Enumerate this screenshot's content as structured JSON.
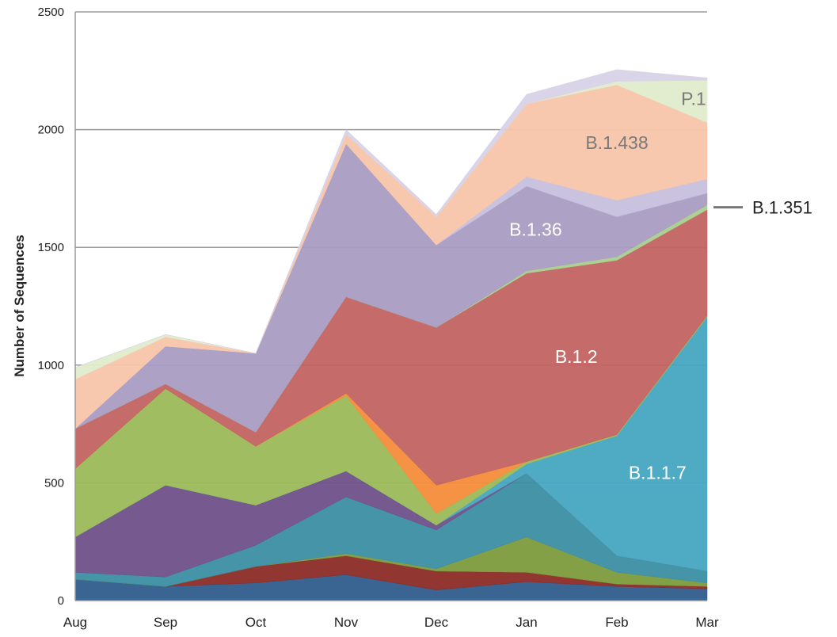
{
  "chart_data": {
    "type": "stacked-area",
    "y_label": "Number of Sequences",
    "categories": [
      "Aug",
      "Sep",
      "Oct",
      "Nov",
      "Dec",
      "Jan",
      "Feb",
      "Mar"
    ],
    "ylim": [
      0,
      2500
    ],
    "yticks": [
      0,
      500,
      1000,
      1500,
      2000,
      2500
    ],
    "grid": true,
    "series": [
      {
        "color": "#2f5d8c",
        "values": [
          90,
          60,
          75,
          110,
          45,
          80,
          60,
          50
        ]
      },
      {
        "color": "#8c2b27",
        "values": [
          0,
          0,
          70,
          80,
          80,
          40,
          10,
          10
        ]
      },
      {
        "color": "#7c9b3d",
        "values": [
          0,
          0,
          0,
          10,
          10,
          150,
          50,
          15
        ]
      },
      {
        "color": "#3b8ea2",
        "values": [
          30,
          40,
          90,
          240,
          165,
          270,
          70,
          50
        ]
      },
      {
        "color": "#6e5089",
        "values": [
          150,
          390,
          170,
          110,
          20,
          0,
          0,
          0
        ]
      },
      {
        "name": "B.1.1.7",
        "color": "#46a6c1",
        "values": [
          0,
          0,
          0,
          0,
          0,
          40,
          510,
          1080
        ]
      },
      {
        "color": "#9bbb59",
        "values": [
          290,
          410,
          250,
          320,
          50,
          10,
          5,
          5
        ]
      },
      {
        "color": "#f48c3a",
        "values": [
          0,
          0,
          0,
          10,
          120,
          0,
          0,
          0
        ]
      },
      {
        "name": "B.1.2",
        "color": "#c26361",
        "values": [
          170,
          20,
          60,
          410,
          670,
          800,
          740,
          450
        ]
      },
      {
        "name": "B.1.351",
        "color": "#a9cf8c",
        "values": [
          0,
          0,
          0,
          0,
          0,
          10,
          15,
          20
        ]
      },
      {
        "name": "B.1.36",
        "color": "#a99cc2",
        "values": [
          0,
          160,
          335,
          650,
          350,
          360,
          170,
          50
        ]
      },
      {
        "color": "#c6c0de",
        "values": [
          0,
          0,
          0,
          0,
          0,
          40,
          70,
          60
        ]
      },
      {
        "name": "B.1.438",
        "color": "#f8c5aa",
        "values": [
          210,
          40,
          0,
          40,
          120,
          310,
          490,
          240
        ]
      },
      {
        "name": "P.1",
        "color": "#e0ebcc",
        "values": [
          50,
          10,
          0,
          0,
          0,
          0,
          15,
          180
        ]
      },
      {
        "color": "#d8d2e8",
        "values": [
          0,
          0,
          0,
          20,
          10,
          40,
          50,
          10
        ]
      }
    ]
  }
}
